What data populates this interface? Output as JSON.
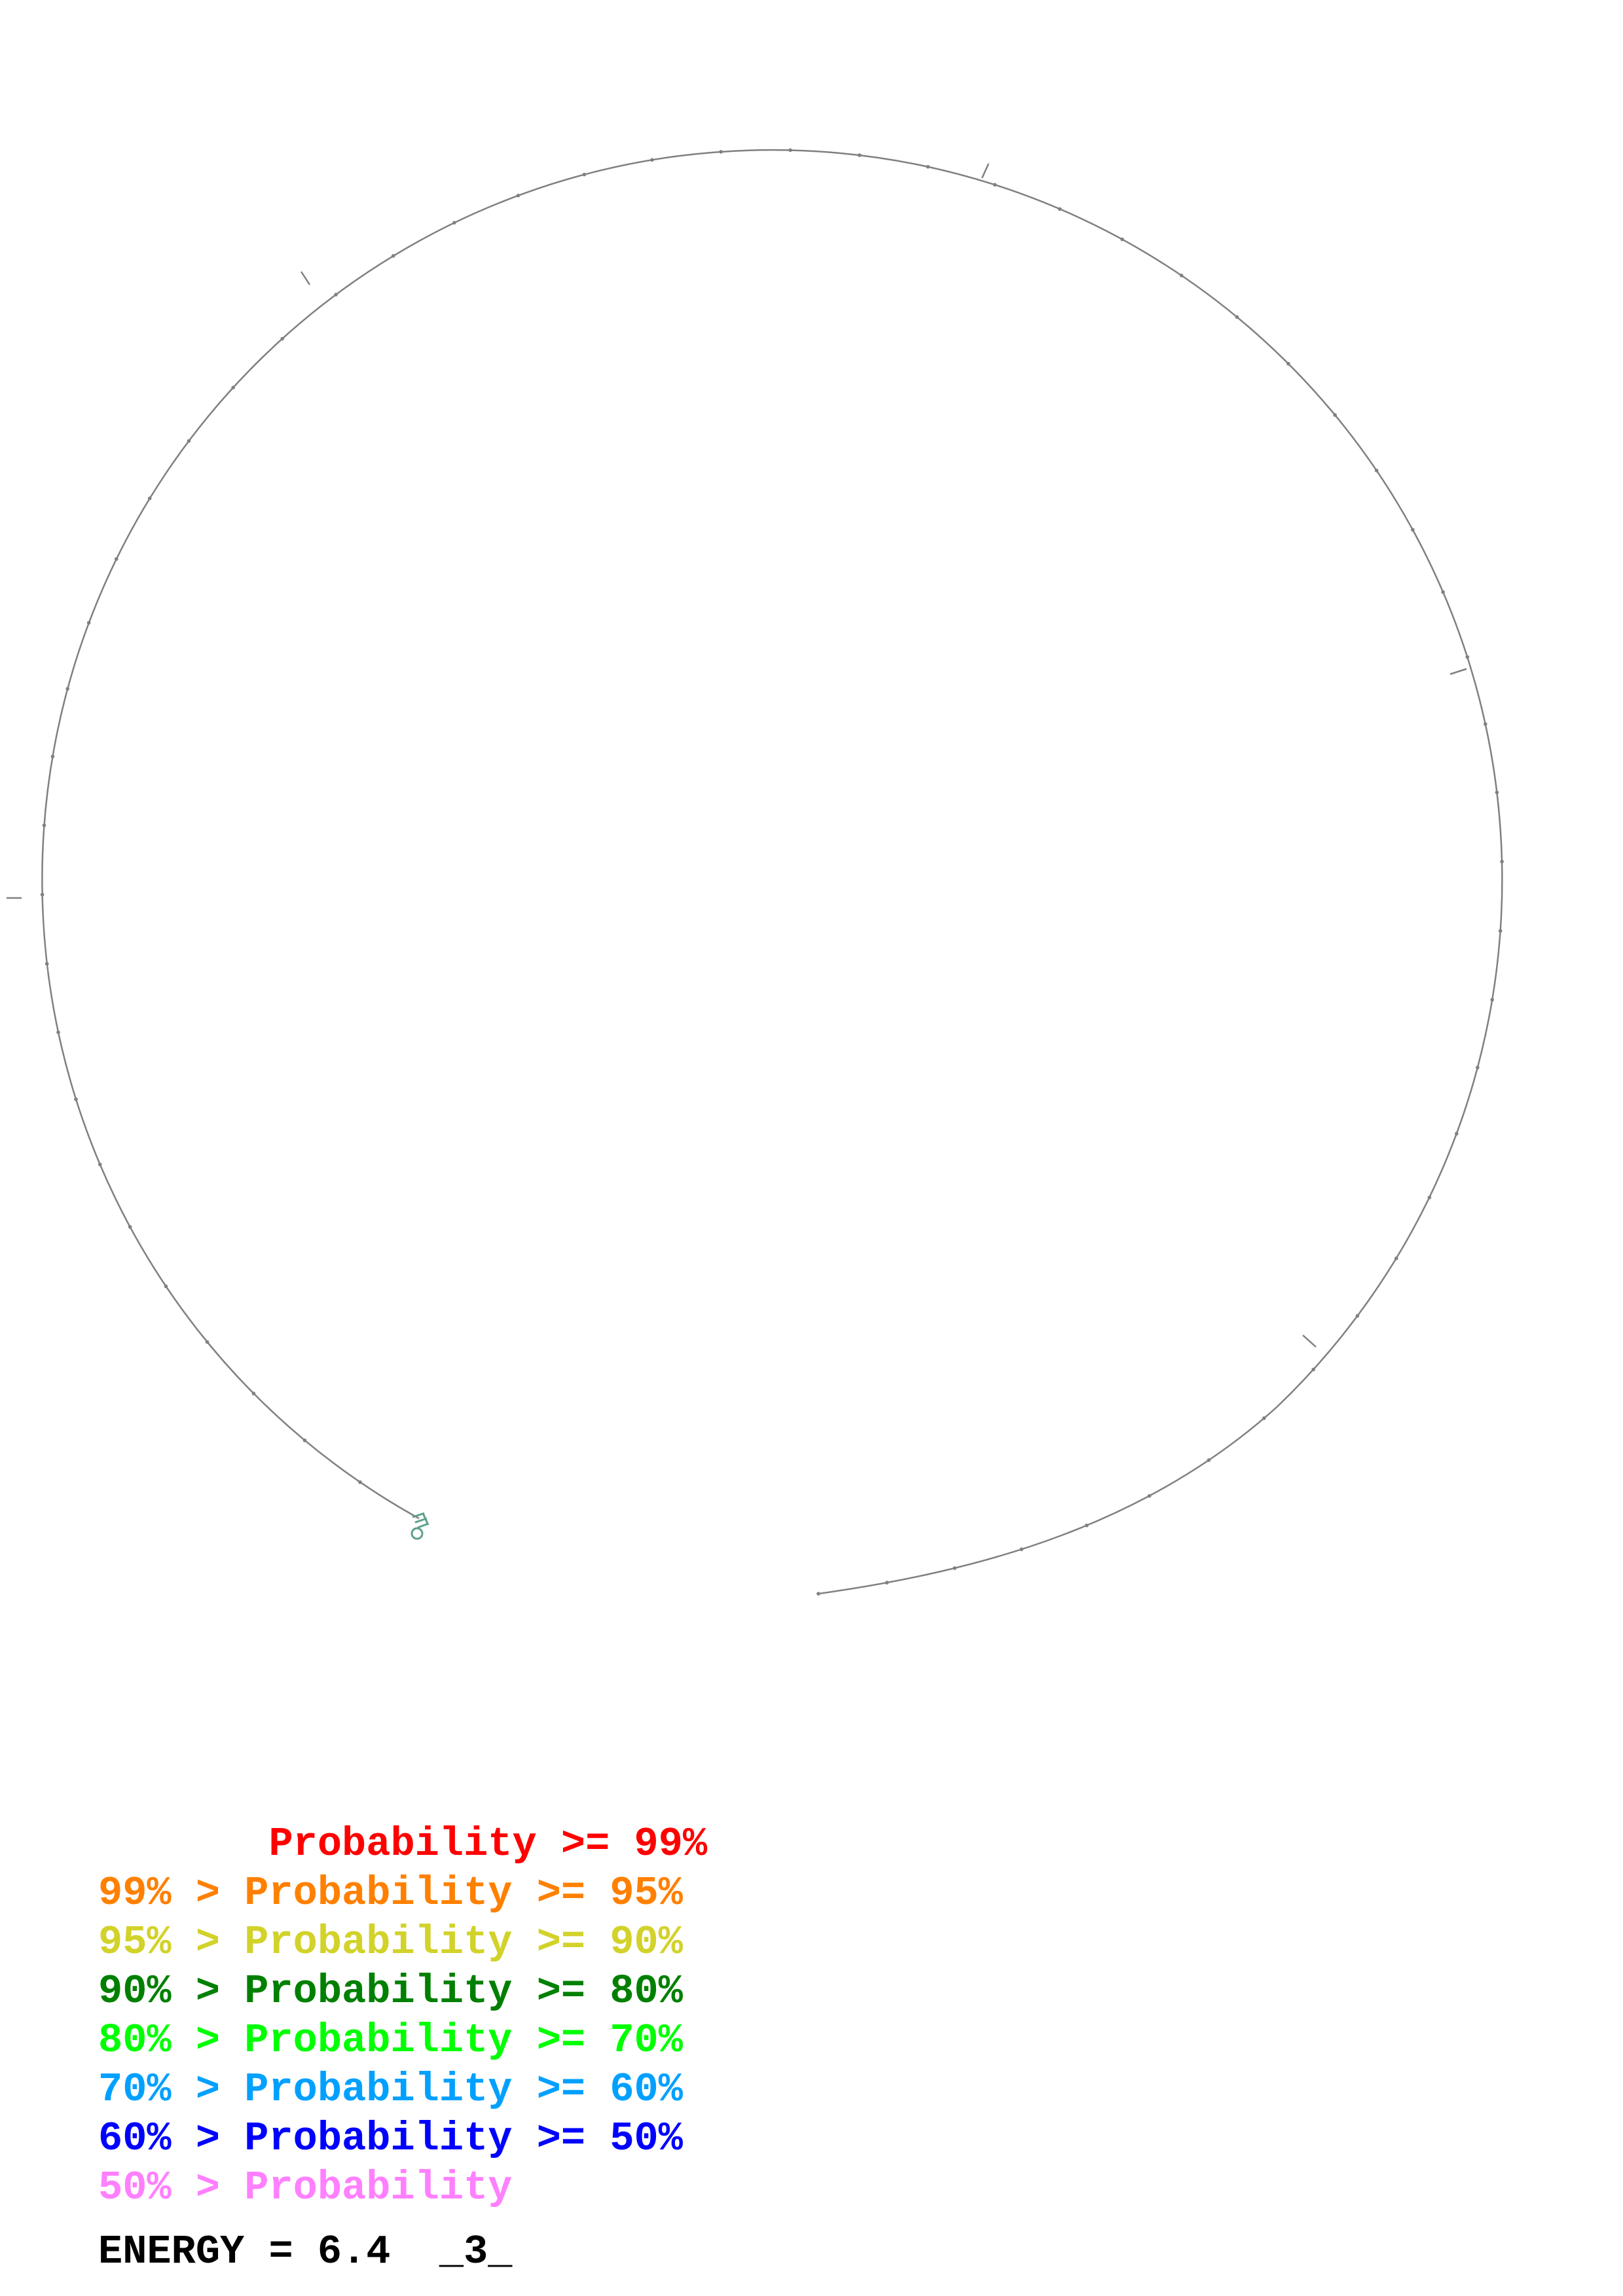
{
  "legend": {
    "items": [
      {
        "text": "       Probability >= 99%",
        "color": "#ff0000"
      },
      {
        "text": "99% > Probability >= 95%",
        "color": "#ff8000"
      },
      {
        "text": "95% > Probability >= 90%",
        "color": "#d2d22a"
      },
      {
        "text": "90% > Probability >= 80%",
        "color": "#008000"
      },
      {
        "text": "80% > Probability >= 70%",
        "color": "#00ff00"
      },
      {
        "text": "70% > Probability >= 60%",
        "color": "#00a0ff"
      },
      {
        "text": "60% > Probability >= 50%",
        "color": "#0000ff"
      },
      {
        "text": "50% > Probability",
        "color": "#ff80ff"
      }
    ]
  },
  "energy": {
    "label": "ENERGY = 6.4  _3_"
  },
  "structure": {
    "backbone_color": "#808080",
    "hairpin_color": "#5fa08a"
  }
}
